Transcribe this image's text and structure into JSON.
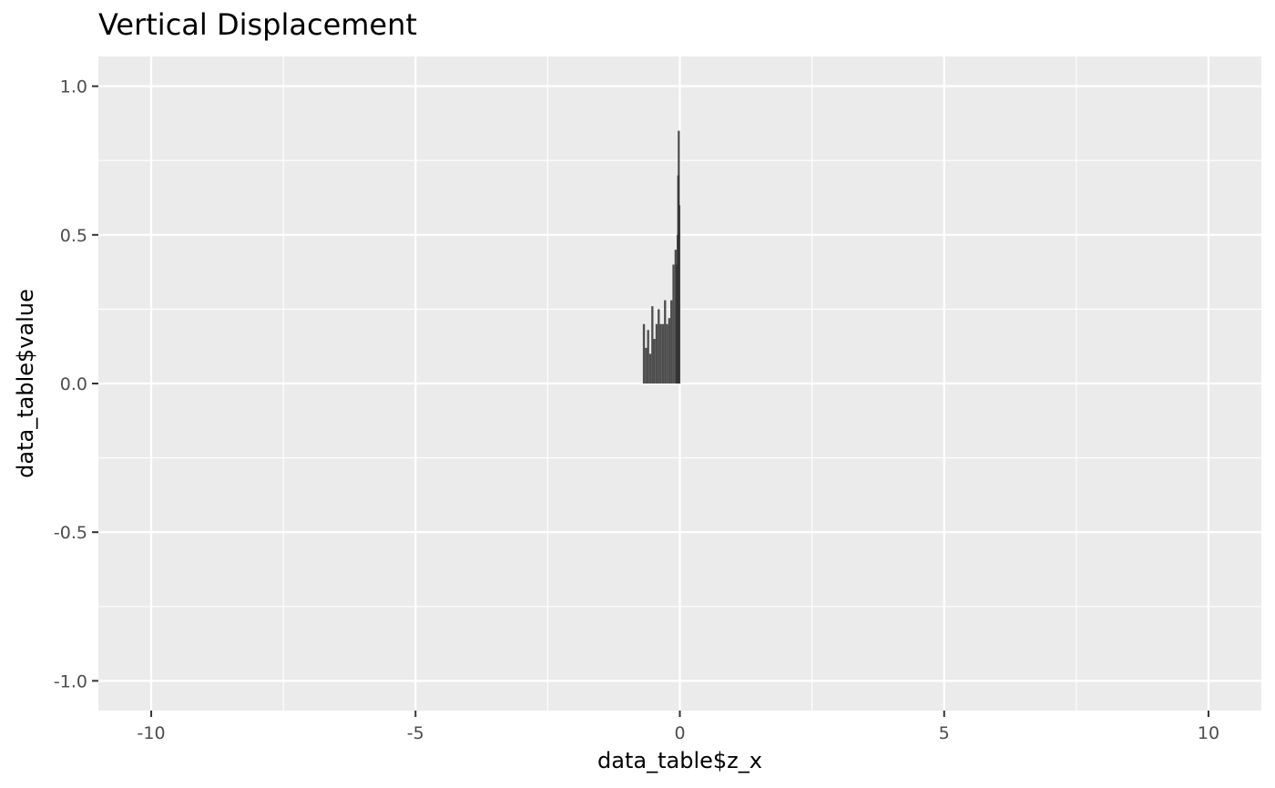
{
  "chart_data": {
    "type": "bar",
    "title": "Vertical Displacement",
    "xlabel": "data_table$z_x",
    "ylabel": "data_table$value",
    "xlim": [
      -11,
      11
    ],
    "ylim": [
      -1.1,
      1.1
    ],
    "x_ticks": [
      -10,
      -5,
      0,
      5,
      10
    ],
    "x_tick_labels": [
      "-10",
      "-5",
      "0",
      "5",
      "10"
    ],
    "y_ticks": [
      -1.0,
      -0.5,
      0.0,
      0.5,
      1.0
    ],
    "y_tick_labels": [
      "-1.0",
      "-0.5",
      "0.0",
      "0.5",
      "1.0"
    ],
    "grid": true,
    "legend": "none",
    "colors": {
      "panel": "#ebebeb",
      "grid": "#ffffff",
      "bar": "#333333"
    },
    "x": [
      -0.68,
      -0.64,
      -0.6,
      -0.56,
      -0.52,
      -0.48,
      -0.44,
      -0.4,
      -0.36,
      -0.32,
      -0.28,
      -0.24,
      -0.2,
      -0.16,
      -0.12,
      -0.08,
      -0.06,
      -0.04,
      -0.03,
      -0.02,
      -0.01
    ],
    "values": [
      0.2,
      0.12,
      0.18,
      0.1,
      0.26,
      0.15,
      0.2,
      0.25,
      0.2,
      0.2,
      0.28,
      0.2,
      0.22,
      0.28,
      0.4,
      0.45,
      0.4,
      0.5,
      0.7,
      0.85,
      0.6
    ]
  }
}
